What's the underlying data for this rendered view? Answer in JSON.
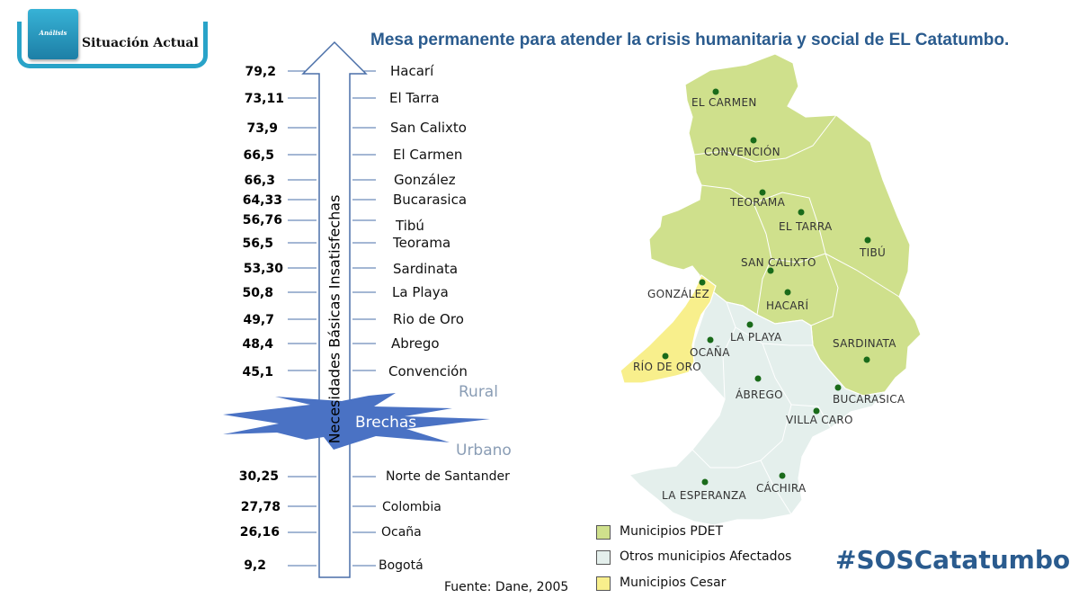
{
  "badge": {
    "small": "Análisis",
    "label": "Situación Actual"
  },
  "title": "Mesa permanente para atender la crisis humanitaria y social de EL Catatumbo.",
  "axis_label": "Necesidades Básicas Insatisfechas",
  "rural_label": "Rural",
  "urban_label": "Urbano",
  "gap_label": "Brechas",
  "rural_rows": [
    {
      "value": "79,2",
      "place": "Hacarí"
    },
    {
      "value": "73,11",
      "place": "El Tarra"
    },
    {
      "value": "73,9",
      "place": "San Calixto"
    },
    {
      "value": "66,5",
      "place": "El Carmen"
    },
    {
      "value": "66,3",
      "place": "González"
    },
    {
      "value": "64,33",
      "place": "Bucarasica"
    },
    {
      "value": "56,76",
      "place": "Tibú"
    },
    {
      "value": "56,5",
      "place": "Teorama"
    },
    {
      "value": "53,30",
      "place": "Sardinata"
    },
    {
      "value": "50,8",
      "place": "La Playa"
    },
    {
      "value": "49,7",
      "place": "Rio de Oro"
    },
    {
      "value": "48,4",
      "place": "Abrego"
    },
    {
      "value": "45,1",
      "place": "Convención"
    }
  ],
  "urban_rows": [
    {
      "value": "30,25",
      "place": "Norte de Santander"
    },
    {
      "value": "27,78",
      "place": "Colombia"
    },
    {
      "value": "26,16",
      "place": "Ocaña"
    },
    {
      "value": "9,2",
      "place": "Bogotá"
    }
  ],
  "source": "Fuente: Dane, 2005",
  "map_labels": [
    "EL CARMEN",
    "CONVENCIÓN",
    "TEORAMA",
    "EL TARRA",
    "TIBÚ",
    "SAN CALIXTO",
    "GONZÁLEZ",
    "HACARÍ",
    "LA PLAYA",
    "OCAÑA",
    "RÍO DE ORO",
    "SARDINATA",
    "ÁBREGO",
    "BUCARASICA",
    "VILLA CARO",
    "LA ESPERANZA",
    "CÁCHIRA"
  ],
  "legend": [
    {
      "label": "Municipios PDET",
      "color": "#cfe08c"
    },
    {
      "label": "Otros municipios Afectados",
      "color": "#e4efec"
    },
    {
      "label": "Municipios Cesar",
      "color": "#f8ef8c"
    }
  ],
  "colors": {
    "pdet": "#cfe08c",
    "otros": "#e4efec",
    "cesar": "#f8ef8c",
    "title": "#2a5b8e",
    "arrow_star": "#4a72c4",
    "dot": "#1a6b1a"
  },
  "hashtag": "#SOSCatatumbo"
}
